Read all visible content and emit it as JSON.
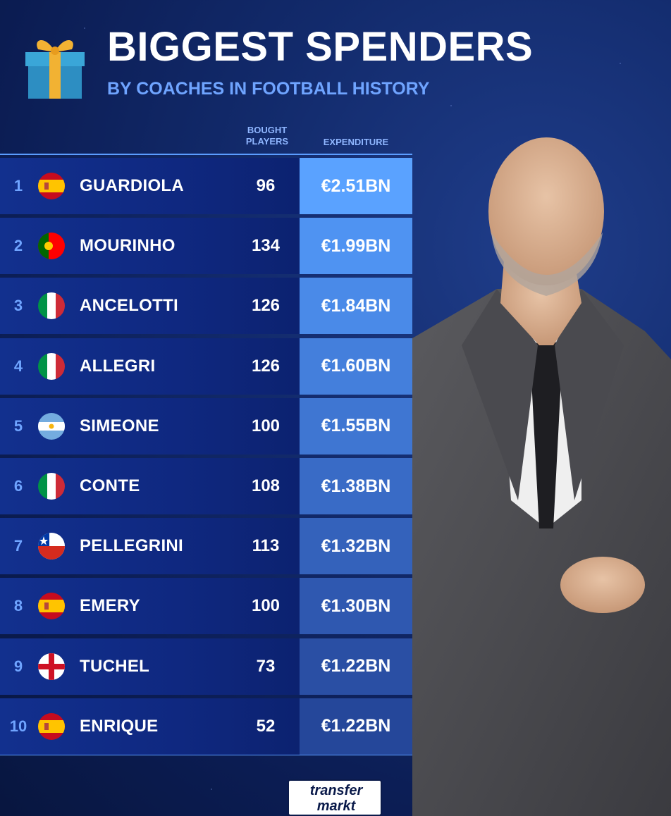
{
  "header": {
    "title": "BIGGEST SPENDERS",
    "subtitle": "BY COACHES IN FOOTBALL HISTORY"
  },
  "columns": {
    "bought": "BOUGHT PLAYERS",
    "expenditure": "EXPENDITURE"
  },
  "rows": [
    {
      "rank": "1",
      "name": "GUARDIOLA",
      "flag": "spain",
      "bought": "96",
      "expenditure": "€2.51BN",
      "cell_color": "#5aa2ff"
    },
    {
      "rank": "2",
      "name": "MOURINHO",
      "flag": "portugal",
      "bought": "134",
      "expenditure": "€1.99BN",
      "cell_color": "#4f93f2"
    },
    {
      "rank": "3",
      "name": "ANCELOTTI",
      "flag": "italy",
      "bought": "126",
      "expenditure": "€1.84BN",
      "cell_color": "#4a8ae8"
    },
    {
      "rank": "4",
      "name": "ALLEGRI",
      "flag": "italy",
      "bought": "126",
      "expenditure": "€1.60BN",
      "cell_color": "#447fdc"
    },
    {
      "rank": "5",
      "name": "SIMEONE",
      "flag": "argentina",
      "bought": "100",
      "expenditure": "€1.55BN",
      "cell_color": "#3f76d2"
    },
    {
      "rank": "6",
      "name": "CONTE",
      "flag": "italy",
      "bought": "108",
      "expenditure": "€1.38BN",
      "cell_color": "#396bc6"
    },
    {
      "rank": "7",
      "name": "PELLEGRINI",
      "flag": "chile",
      "bought": "113",
      "expenditure": "€1.32BN",
      "cell_color": "#3462bb"
    },
    {
      "rank": "8",
      "name": "EMERY",
      "flag": "spain",
      "bought": "100",
      "expenditure": "€1.30BN",
      "cell_color": "#2f58b0"
    },
    {
      "rank": "9",
      "name": "TUCHEL",
      "flag": "england",
      "bought": "73",
      "expenditure": "€1.22BN",
      "cell_color": "#2a4fa4"
    },
    {
      "rank": "10",
      "name": "ENRIQUE",
      "flag": "spain",
      "bought": "52",
      "expenditure": "€1.22BN",
      "cell_color": "#25479a"
    }
  ],
  "logo": {
    "line1": "transfer",
    "line2": "markt"
  }
}
